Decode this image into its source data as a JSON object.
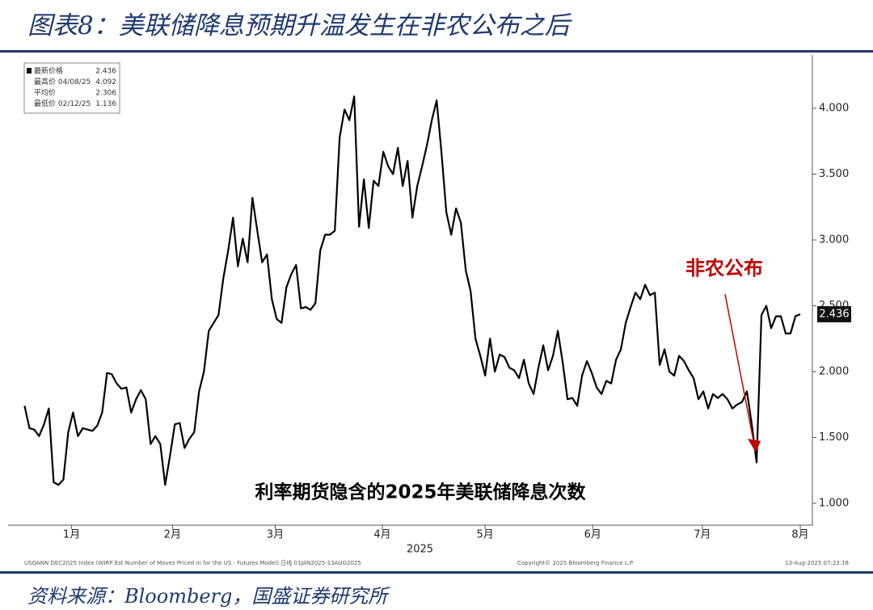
{
  "title": "图表8：美联储降息预期升温发生在非农公布之后",
  "source": "资料来源：Bloomberg，国盛证券研究所",
  "chart_data": {
    "type": "line",
    "color": "#000000",
    "values": [
      1.74,
      1.57,
      1.56,
      1.51,
      1.6,
      1.72,
      1.16,
      1.14,
      1.18,
      1.54,
      1.69,
      1.51,
      1.57,
      1.56,
      1.55,
      1.59,
      1.69,
      1.99,
      1.98,
      1.91,
      1.87,
      1.88,
      1.69,
      1.79,
      1.86,
      1.79,
      1.45,
      1.51,
      1.45,
      1.14,
      1.36,
      1.6,
      1.61,
      1.42,
      1.49,
      1.54,
      1.85,
      2.0,
      2.31,
      2.37,
      2.43,
      2.71,
      2.92,
      3.17,
      2.8,
      3.01,
      2.83,
      3.32,
      3.07,
      2.83,
      2.89,
      2.55,
      2.4,
      2.37,
      2.64,
      2.74,
      2.81,
      2.48,
      2.49,
      2.47,
      2.52,
      2.92,
      3.04,
      3.04,
      3.07,
      3.78,
      3.99,
      3.91,
      4.09,
      3.1,
      3.46,
      3.09,
      3.45,
      3.41,
      3.67,
      3.56,
      3.5,
      3.7,
      3.41,
      3.6,
      3.17,
      3.41,
      3.56,
      3.72,
      3.91,
      4.06,
      3.66,
      3.21,
      3.04,
      3.24,
      3.13,
      2.77,
      2.61,
      2.25,
      2.12,
      1.97,
      2.25,
      2.0,
      2.13,
      2.11,
      2.03,
      2.01,
      1.95,
      2.09,
      1.91,
      1.83,
      2.03,
      2.2,
      2.01,
      2.12,
      2.31,
      2.07,
      1.79,
      1.8,
      1.74,
      1.97,
      2.08,
      1.99,
      1.88,
      1.83,
      1.93,
      1.91,
      2.09,
      2.17,
      2.37,
      2.49,
      2.6,
      2.55,
      2.66,
      2.58,
      2.6,
      2.05,
      2.17,
      2.0,
      1.97,
      2.12,
      2.08,
      2.01,
      1.95,
      1.79,
      1.85,
      1.72,
      1.83,
      1.8,
      1.83,
      1.79,
      1.72,
      1.75,
      1.77,
      1.85,
      1.6,
      1.31,
      2.43,
      2.5,
      2.33,
      2.42,
      2.42,
      2.29,
      2.29,
      2.42,
      2.436
    ],
    "last_label": "2.436",
    "xlim": [
      -3.4,
      162.5
    ],
    "xticks": [
      {
        "value": 9.7,
        "label": "1月"
      },
      {
        "value": 30.5,
        "label": "2月"
      },
      {
        "value": 51.7,
        "label": "3月"
      },
      {
        "value": 73.8,
        "label": "4月"
      },
      {
        "value": 95,
        "label": "5月"
      },
      {
        "value": 117.2,
        "label": "6月"
      },
      {
        "value": 139.8,
        "label": "7月"
      },
      {
        "value": 160,
        "label": "8月"
      }
    ],
    "x_label": "2025",
    "ylim": [
      0.834,
      4.405
    ],
    "yticks": [
      {
        "value": 1,
        "label": "1.000"
      },
      {
        "value": 1.5,
        "label": "1.500"
      },
      {
        "value": 2,
        "label": "2.000"
      },
      {
        "value": 2.5,
        "label": "2.500"
      },
      {
        "value": 3,
        "label": "3.000"
      },
      {
        "value": 3.5,
        "label": "3.500"
      },
      {
        "value": 4,
        "label": "4.000"
      }
    ],
    "grid": false,
    "legend": [
      [
        "最新价格",
        "2.436"
      ],
      [
        "最高价 04/08/25",
        "4.092"
      ],
      [
        "平均价",
        "2.306"
      ],
      [
        "最低价 02/12/25",
        "1.136"
      ]
    ],
    "caption": "利率期货隐含的2025年美联储降息次数",
    "annotation": {
      "text": "非农公布",
      "color": "#c00000"
    },
    "footer": [
      "USOANN DEC2025 Index (WIRP Est Number of Moves Priced in for the US - Futures Model) 日线 01JAN2025-13AUG2025",
      "Copyright© 2025 Bloomberg Finance L.P.",
      "13-Aug-2025 07:23:18"
    ]
  }
}
